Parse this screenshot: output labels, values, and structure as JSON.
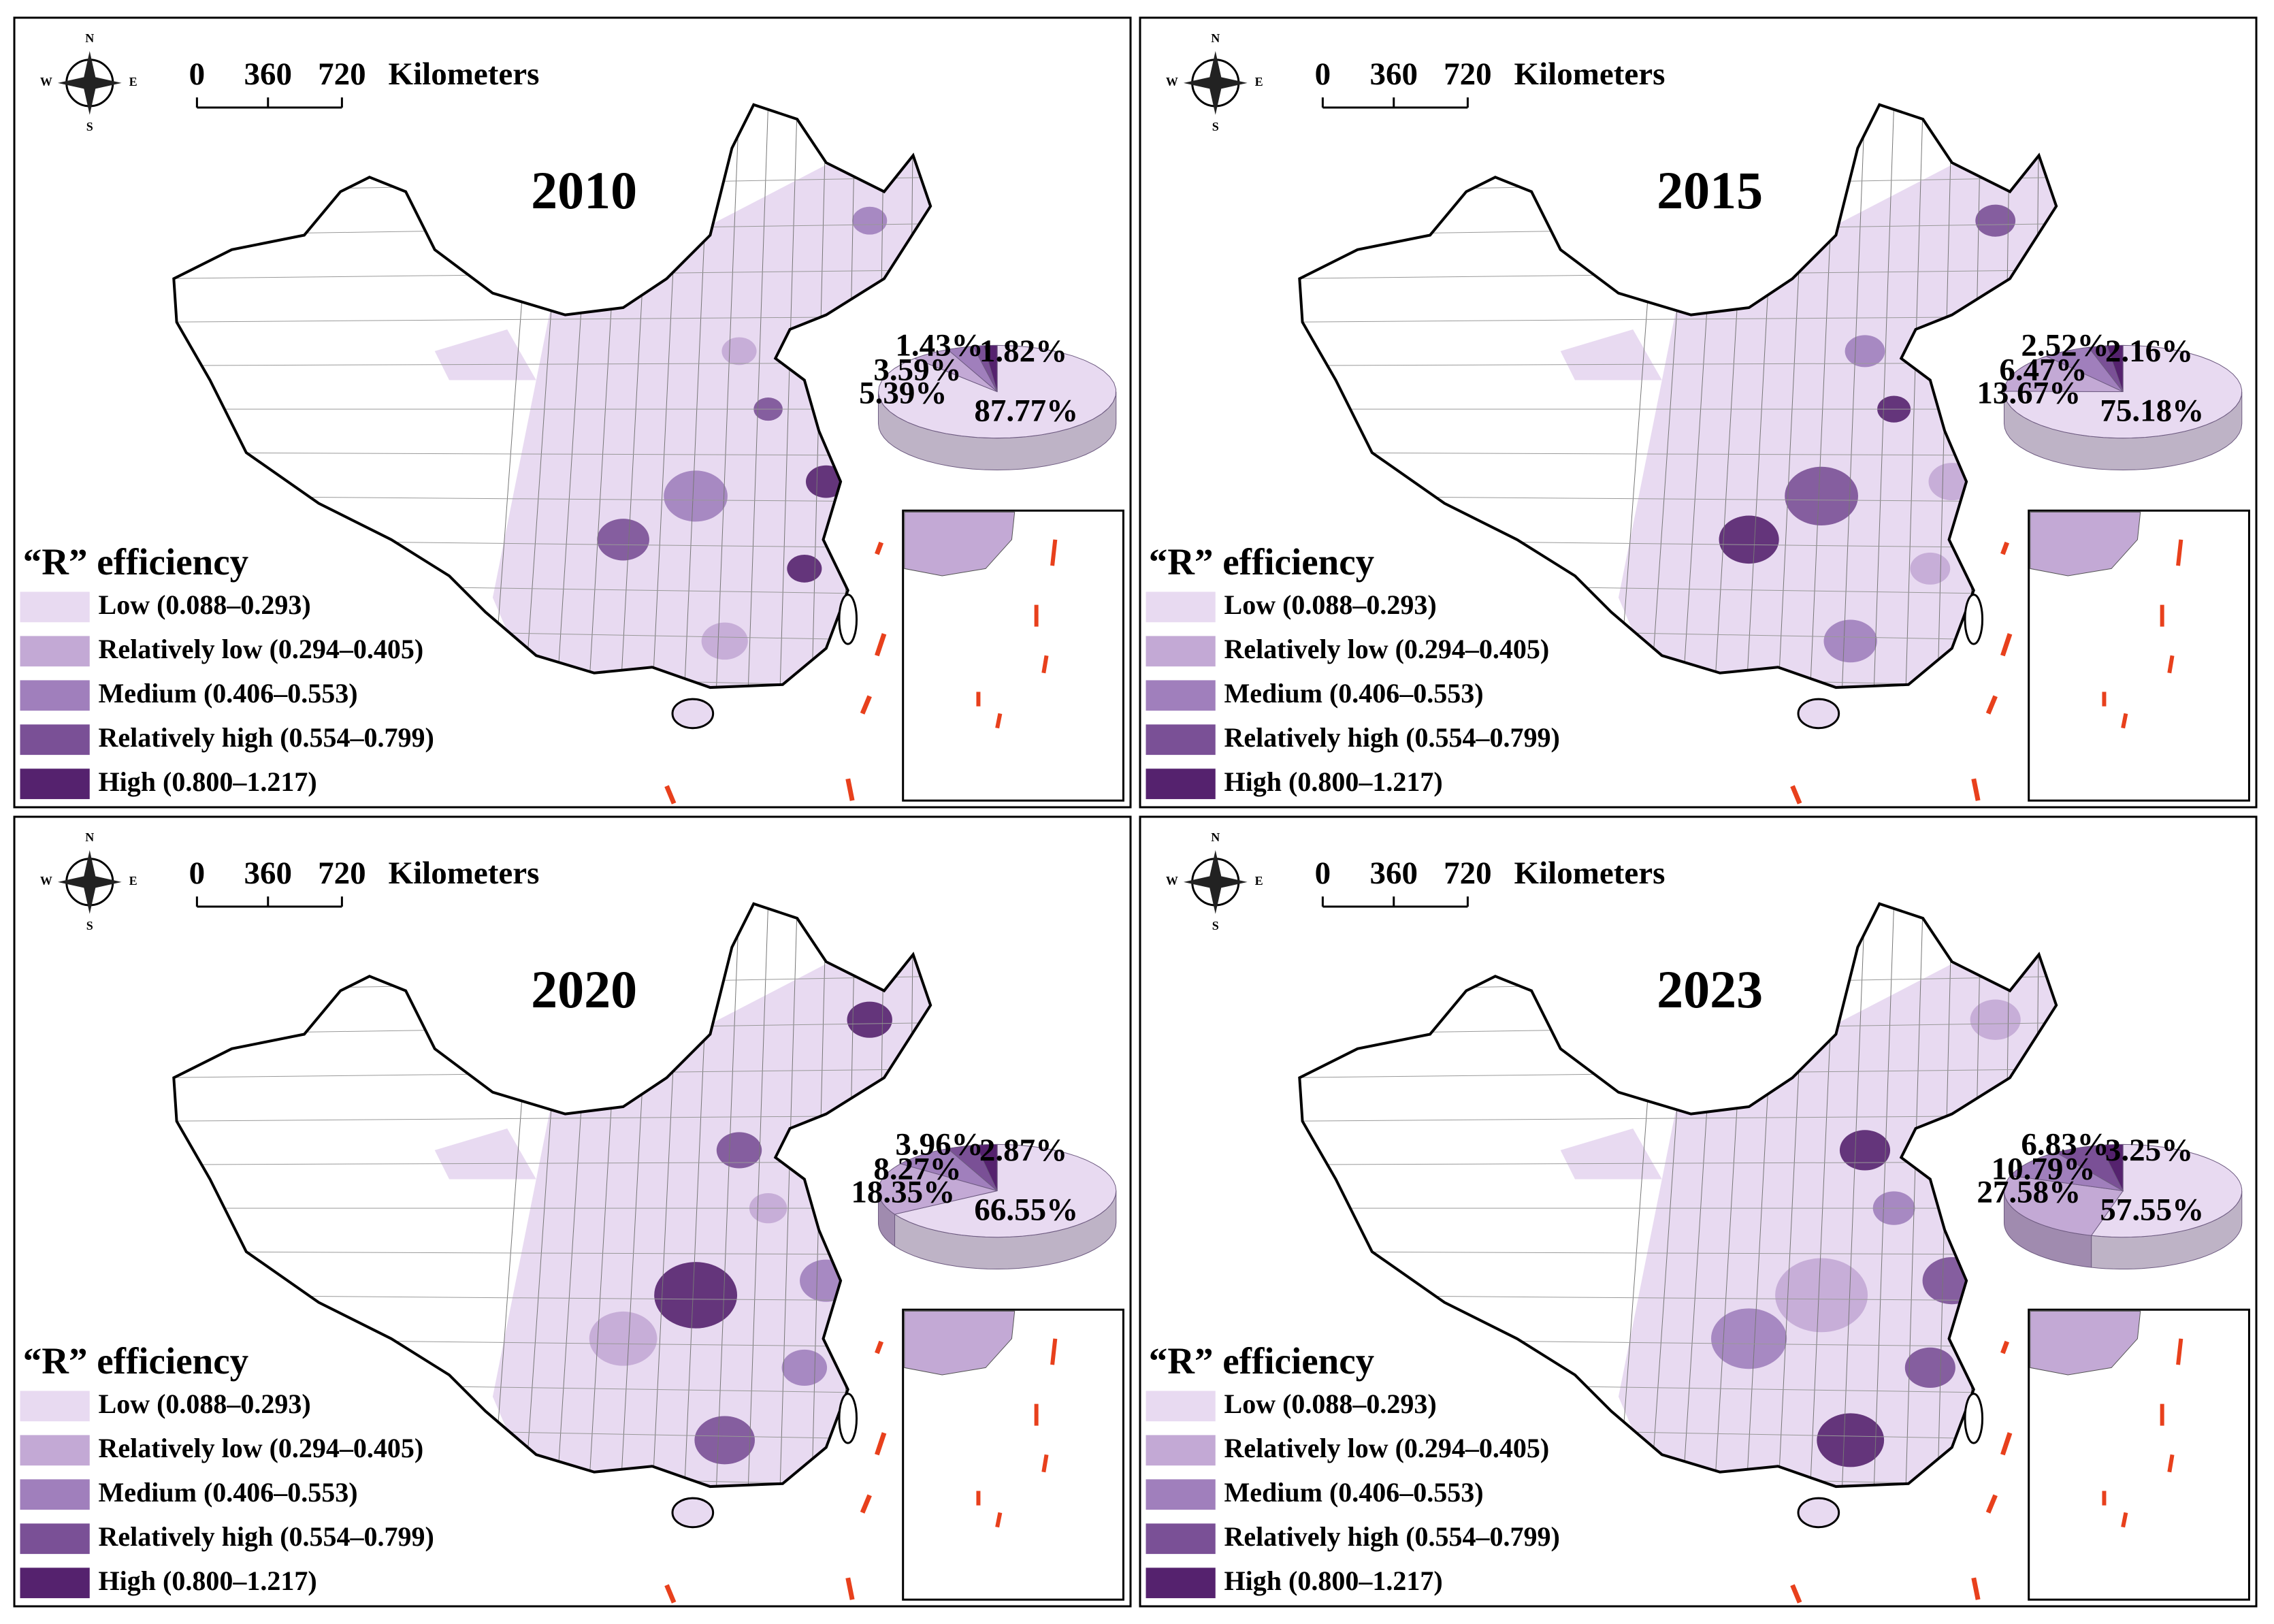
{
  "chart_data": [
    {
      "type": "pie",
      "title": "2010",
      "legend_title": "“R” efficiency",
      "categories": [
        "Low (0.088–0.293)",
        "Relatively low (0.294–0.405)",
        "Medium (0.406–0.553)",
        "Relatively high (0.554–0.799)",
        "High (0.800–1.217)"
      ],
      "colors": [
        "#e8daf1",
        "#c3a9d5",
        "#a07fbc",
        "#7a5096",
        "#55226e"
      ],
      "values": [
        87.77,
        5.39,
        3.59,
        1.43,
        1.82
      ],
      "value_labels": [
        "87.77%",
        "5.39%",
        "3.59%",
        "1.43%",
        "1.82%"
      ]
    },
    {
      "type": "pie",
      "title": "2015",
      "legend_title": "“R” efficiency",
      "categories": [
        "Low (0.088–0.293)",
        "Relatively low (0.294–0.405)",
        "Medium (0.406–0.553)",
        "Relatively high (0.554–0.799)",
        "High (0.800–1.217)"
      ],
      "colors": [
        "#e8daf1",
        "#c3a9d5",
        "#a07fbc",
        "#7a5096",
        "#55226e"
      ],
      "values": [
        75.18,
        13.67,
        6.47,
        2.52,
        2.16
      ],
      "value_labels": [
        "75.18%",
        "13.67%",
        "6.47%",
        "2.52%",
        "2.16%"
      ]
    },
    {
      "type": "pie",
      "title": "2020",
      "legend_title": "“R” efficiency",
      "categories": [
        "Low (0.088–0.293)",
        "Relatively low (0.294–0.405)",
        "Medium (0.406–0.553)",
        "Relatively high (0.554–0.799)",
        "High (0.800–1.217)"
      ],
      "colors": [
        "#e8daf1",
        "#c3a9d5",
        "#a07fbc",
        "#7a5096",
        "#55226e"
      ],
      "values": [
        66.55,
        18.35,
        8.27,
        3.96,
        2.87
      ],
      "value_labels": [
        "66.55%",
        "18.35%",
        "8.27%",
        "3.96%",
        "2.87%"
      ]
    },
    {
      "type": "pie",
      "title": "2023",
      "legend_title": "“R” efficiency",
      "categories": [
        "Low (0.088–0.293)",
        "Relatively low (0.294–0.405)",
        "Medium (0.406–0.553)",
        "Relatively high (0.554–0.799)",
        "High (0.800–1.217)"
      ],
      "colors": [
        "#e8daf1",
        "#c3a9d5",
        "#a07fbc",
        "#7a5096",
        "#55226e"
      ],
      "values": [
        57.55,
        27.58,
        10.79,
        6.83,
        3.25
      ],
      "value_labels": [
        "57.55%",
        "27.58%",
        "10.79%",
        "6.83%",
        "3.25%"
      ]
    }
  ],
  "panels": [
    {
      "north": "N",
      "south": "S",
      "west": "W",
      "east": "E",
      "scale_labels": [
        "0",
        "360",
        "720"
      ],
      "scale_unit": "Kilometers"
    },
    {
      "north": "N",
      "south": "S",
      "west": "W",
      "east": "E",
      "scale_labels": [
        "0",
        "360",
        "720"
      ],
      "scale_unit": "Kilometers"
    },
    {
      "north": "N",
      "south": "S",
      "west": "W",
      "east": "E",
      "scale_labels": [
        "0",
        "360",
        "720"
      ],
      "scale_unit": "Kilometers"
    },
    {
      "north": "N",
      "south": "S",
      "west": "W",
      "east": "E",
      "scale_labels": [
        "0",
        "360",
        "720"
      ],
      "scale_unit": "Kilometers"
    }
  ]
}
